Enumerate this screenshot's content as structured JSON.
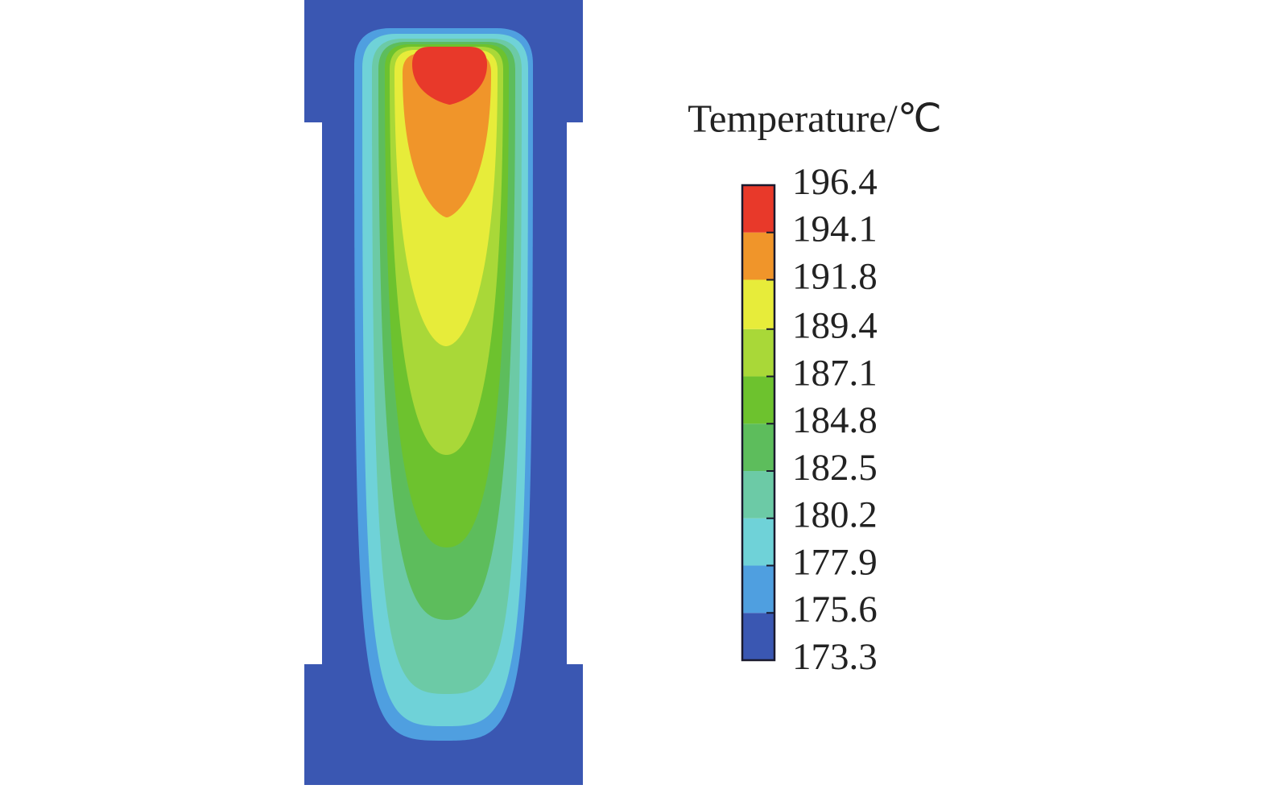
{
  "chart_data": {
    "type": "contour",
    "title": "Temperature/℃",
    "levels": [
      173.3,
      175.6,
      177.9,
      180.2,
      182.5,
      184.8,
      187.1,
      189.4,
      191.8,
      194.1,
      196.4
    ],
    "colors": [
      "#3a57b2",
      "#4f9fe0",
      "#6fd2d8",
      "#6ccaa6",
      "#5dbd5c",
      "#6dc22e",
      "#a9d838",
      "#e7ec3a",
      "#f0952a",
      "#e8392a"
    ],
    "clim": [
      173.3,
      196.4
    ]
  }
}
